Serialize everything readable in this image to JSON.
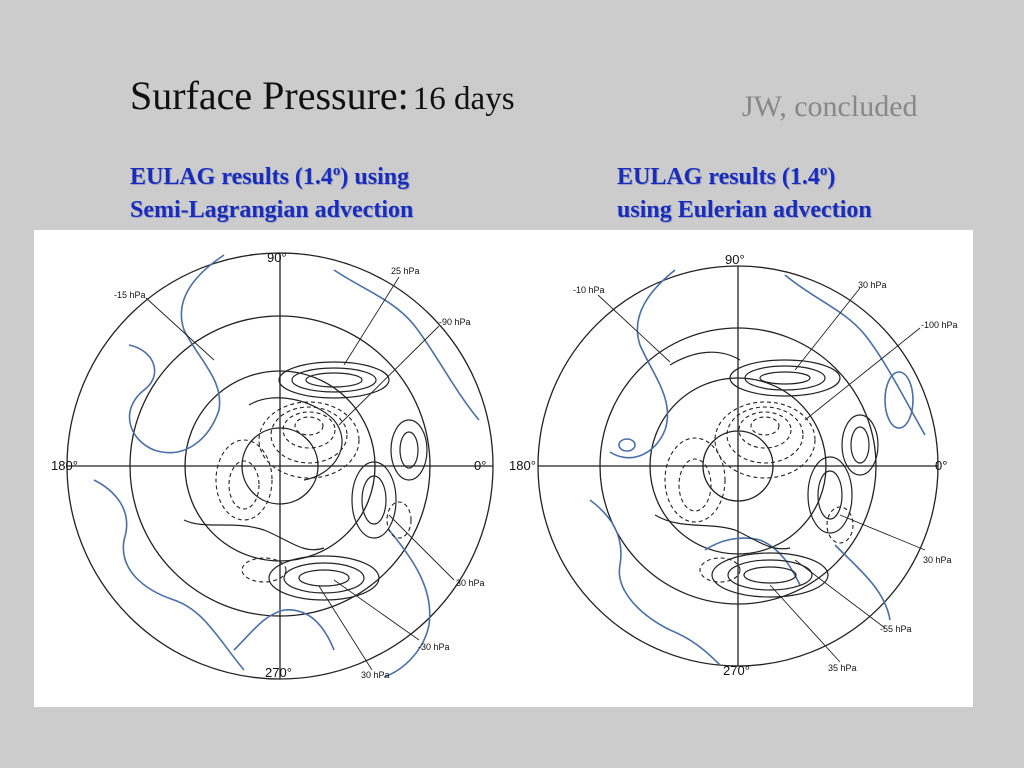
{
  "slide": {
    "title_main": "Surface Pressure:",
    "title_sub": "16 days",
    "byline": "JW, concluded"
  },
  "panels": [
    {
      "caption_line1_pre": "EULAG results (1.4",
      "caption_sup": "o",
      "caption_line1_post": ") using",
      "caption_line2": "Semi-Lagrangian advection",
      "deg_top": "90°",
      "deg_bottom": "270°",
      "deg_left": "180°",
      "deg_right": "0°",
      "labels": [
        "-15 hPa",
        "25 hPa",
        "-90 hPa",
        "30 hPa",
        "-30 hPa",
        "30 hPa"
      ]
    },
    {
      "caption_line1_pre": "EULAG results (1.4",
      "caption_sup": "o",
      "caption_line1_post": ")",
      "caption_line2": "using Eulerian advection",
      "deg_top": "90°",
      "deg_bottom": "270°",
      "deg_left": "180°",
      "deg_right": "0°",
      "labels": [
        "-10 hPa",
        "30 hPa",
        "-100 hPa",
        "30 hPa",
        "-55 hPa",
        "35 hPa"
      ]
    }
  ],
  "colors": {
    "caption": "#1a2db8",
    "zero_contour": "#4a6fa8",
    "contour": "#222222",
    "background": "#cccccc"
  }
}
